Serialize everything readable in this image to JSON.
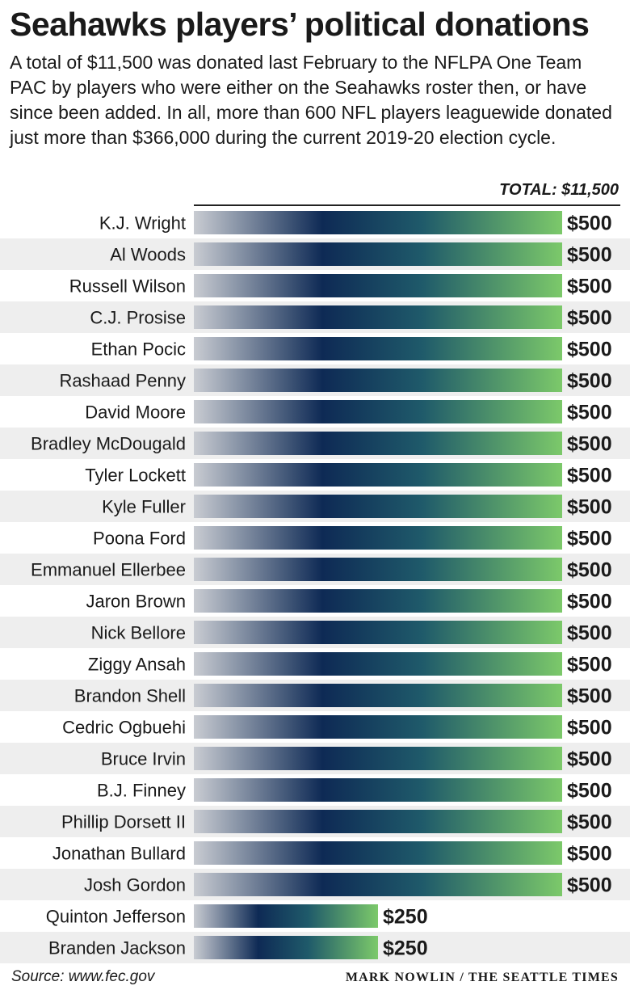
{
  "title": "Seahawks players’ political donations",
  "subtitle": "A total of $11,500 was donated last February to the NFLPA One Team PAC by players who were either on the Seahawks roster then, or have since been added. In all, more than 600 NFL players leaguewide donated just more than $366,000 during the current 2019-20 election cycle.",
  "total_label": "TOTAL: $11,500",
  "source": "Source: www.fec.gov",
  "credit": "MARK NOWLIN / THE SEATTLE TIMES",
  "colors": {
    "bar_start": "#c9ccd2",
    "bar_mid": "#0e2a55",
    "bar_mid2": "#1f5a6a",
    "bar_end": "#7cc96a",
    "stripe": "#eeeeee"
  },
  "chart_data": {
    "type": "bar",
    "orientation": "horizontal",
    "categories": [
      "K.J. Wright",
      "Al Woods",
      "Russell Wilson",
      "C.J. Prosise",
      "Ethan Pocic",
      "Rashaad Penny",
      "David Moore",
      "Bradley McDougald",
      "Tyler Lockett",
      "Kyle Fuller",
      "Poona Ford",
      "Emmanuel Ellerbee",
      "Jaron Brown",
      "Nick Bellore",
      "Ziggy Ansah",
      "Brandon Shell",
      "Cedric Ogbuehi",
      "Bruce Irvin",
      "B.J. Finney",
      "Phillip Dorsett II",
      "Jonathan Bullard",
      "Josh Gordon",
      "Quinton Jefferson",
      "Branden Jackson"
    ],
    "values": [
      500,
      500,
      500,
      500,
      500,
      500,
      500,
      500,
      500,
      500,
      500,
      500,
      500,
      500,
      500,
      500,
      500,
      500,
      500,
      500,
      500,
      500,
      250,
      250
    ],
    "value_labels": [
      "$500",
      "$500",
      "$500",
      "$500",
      "$500",
      "$500",
      "$500",
      "$500",
      "$500",
      "$500",
      "$500",
      "$500",
      "$500",
      "$500",
      "$500",
      "$500",
      "$500",
      "$500",
      "$500",
      "$500",
      "$500",
      "$500",
      "$250",
      "$250"
    ],
    "xlim": [
      0,
      500
    ],
    "grid": false
  }
}
